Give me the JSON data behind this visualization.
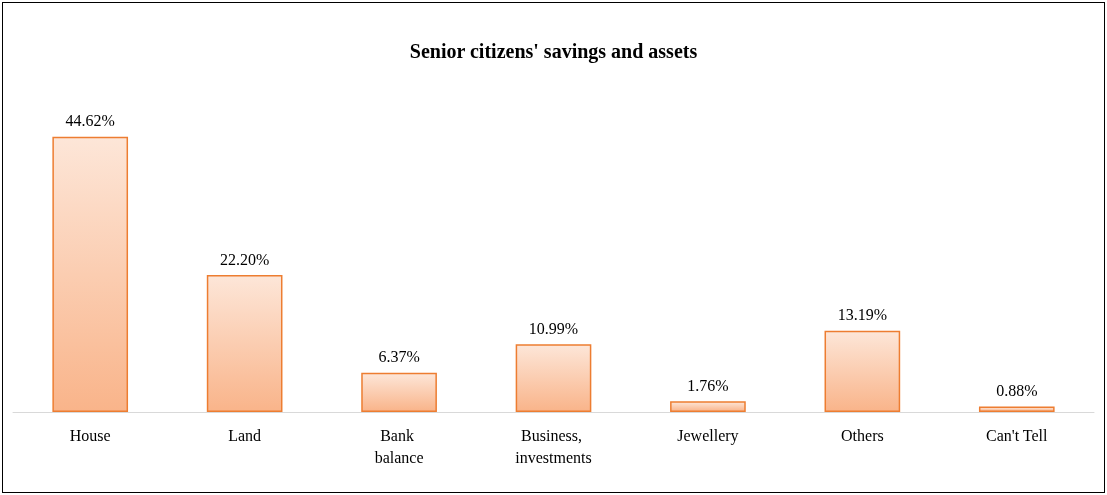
{
  "chart_data": {
    "type": "bar",
    "title": "Senior citizens' savings and assets",
    "categories": [
      "House",
      "Land",
      "Bank balance",
      "Business, investments",
      "Jewellery",
      "Others",
      "Can't Tell"
    ],
    "values": [
      44.62,
      22.2,
      6.37,
      10.99,
      1.76,
      13.19,
      0.88
    ],
    "value_labels": [
      "44.62%",
      "22.20%",
      "6.37%",
      "10.99%",
      "1.76%",
      "13.19%",
      "0.88%"
    ],
    "color": "#ed7d31"
  }
}
